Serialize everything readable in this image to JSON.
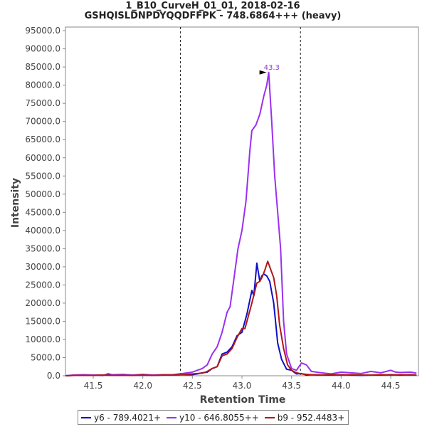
{
  "chart_data": {
    "type": "line",
    "title": "1_B10_CurveH_01_01, 2018-02-16",
    "subtitle": "GSHQISLDNPDYQQDFFPK - 748.6864+++ (heavy)",
    "xlabel": "Retention Time",
    "ylabel": "Intensity",
    "xlim": [
      41.22,
      44.78
    ],
    "ylim": [
      0,
      96000
    ],
    "x_ticks": [
      "41.5",
      "42.0",
      "42.5",
      "43.0",
      "43.5",
      "44.0",
      "44.5"
    ],
    "x_tick_values": [
      41.5,
      42.0,
      42.5,
      43.0,
      43.5,
      44.0,
      44.5
    ],
    "y_ticks": [
      "0.0",
      "5000.0",
      "10000.0",
      "15000.0",
      "20000.0",
      "25000.0",
      "30000.0",
      "35000.0",
      "40000.0",
      "45000.0",
      "50000.0",
      "55000.0",
      "60000.0",
      "65000.0",
      "70000.0",
      "75000.0",
      "80000.0",
      "85000.0",
      "90000.0",
      "95000.0"
    ],
    "y_tick_values": [
      0,
      5000,
      10000,
      15000,
      20000,
      25000,
      30000,
      35000,
      40000,
      45000,
      50000,
      55000,
      60000,
      65000,
      70000,
      75000,
      80000,
      85000,
      90000,
      95000
    ],
    "vlines": [
      42.38,
      43.59
    ],
    "peak_annotation": {
      "label": "43.3",
      "x": 43.27,
      "y": 83500,
      "color": "#9b30d0"
    },
    "grid": false,
    "legend_position": "bottom",
    "series": [
      {
        "name": "y6 - 789.4021+",
        "color": "#1010c8",
        "x": [
          41.22,
          41.3,
          41.4,
          41.5,
          41.6,
          41.65,
          41.7,
          41.8,
          41.9,
          42.0,
          42.1,
          42.2,
          42.3,
          42.4,
          42.5,
          42.55,
          42.6,
          42.65,
          42.7,
          42.75,
          42.8,
          42.85,
          42.9,
          42.95,
          43.0,
          43.05,
          43.1,
          43.12,
          43.15,
          43.18,
          43.2,
          43.22,
          43.25,
          43.28,
          43.32,
          43.36,
          43.4,
          43.45,
          43.5,
          43.55,
          43.6,
          43.65,
          43.7,
          43.8,
          43.9,
          44.0,
          44.1,
          44.2,
          44.3,
          44.4,
          44.5,
          44.6,
          44.7,
          44.76
        ],
        "y": [
          0,
          100,
          100,
          200,
          100,
          500,
          200,
          300,
          100,
          200,
          100,
          200,
          200,
          300,
          300,
          500,
          800,
          1000,
          2000,
          2500,
          6000,
          6500,
          8000,
          11000,
          12000,
          17000,
          23500,
          22000,
          31000,
          26000,
          27500,
          28000,
          27500,
          26000,
          20000,
          9000,
          4500,
          1800,
          1500,
          500,
          600,
          200,
          300,
          200,
          200,
          300,
          200,
          100,
          200,
          200,
          300,
          200,
          300,
          200
        ]
      },
      {
        "name": "y10 - 646.8055++",
        "color": "#9b30f0",
        "x": [
          41.22,
          41.3,
          41.4,
          41.5,
          41.6,
          41.7,
          41.8,
          41.9,
          42.0,
          42.1,
          42.2,
          42.3,
          42.4,
          42.45,
          42.5,
          42.55,
          42.6,
          42.65,
          42.7,
          42.75,
          42.8,
          42.85,
          42.88,
          42.92,
          42.96,
          43.0,
          43.04,
          43.06,
          43.08,
          43.1,
          43.14,
          43.18,
          43.22,
          43.25,
          43.27,
          43.3,
          43.33,
          43.36,
          43.39,
          43.42,
          43.45,
          43.5,
          43.55,
          43.6,
          43.65,
          43.7,
          43.8,
          43.9,
          44.0,
          44.1,
          44.2,
          44.3,
          44.4,
          44.5,
          44.55,
          44.6,
          44.7,
          44.76
        ],
        "y": [
          0,
          200,
          300,
          200,
          200,
          300,
          400,
          200,
          400,
          200,
          300,
          300,
          600,
          800,
          1000,
          1500,
          2000,
          3000,
          6000,
          8000,
          12000,
          17500,
          19000,
          27000,
          35000,
          40000,
          48000,
          55000,
          62000,
          67500,
          69000,
          72000,
          77000,
          80000,
          83500,
          70000,
          55000,
          45000,
          35000,
          15000,
          6000,
          2000,
          1500,
          3500,
          3000,
          1200,
          800,
          500,
          1000,
          800,
          600,
          1200,
          800,
          1500,
          1000,
          900,
          1000,
          700
        ]
      },
      {
        "name": "b9 - 952.4483+",
        "color": "#b01818",
        "x": [
          41.22,
          41.3,
          41.4,
          41.5,
          41.6,
          41.7,
          41.8,
          41.9,
          42.0,
          42.1,
          42.2,
          42.3,
          42.4,
          42.5,
          42.55,
          42.6,
          42.65,
          42.7,
          42.75,
          42.8,
          42.85,
          42.9,
          42.95,
          43.0,
          43.03,
          43.06,
          43.1,
          43.15,
          43.18,
          43.2,
          43.23,
          43.26,
          43.28,
          43.32,
          43.35,
          43.38,
          43.42,
          43.46,
          43.5,
          43.55,
          43.6,
          43.65,
          43.7,
          43.8,
          43.9,
          44.0,
          44.1,
          44.2,
          44.3,
          44.4,
          44.5,
          44.6,
          44.7,
          44.76
        ],
        "y": [
          0,
          100,
          100,
          100,
          200,
          100,
          100,
          100,
          200,
          100,
          200,
          200,
          300,
          500,
          600,
          700,
          1200,
          2000,
          2500,
          5500,
          6000,
          7500,
          10500,
          13000,
          13000,
          16000,
          20000,
          25500,
          26000,
          27000,
          29000,
          31500,
          30000,
          27000,
          22000,
          14000,
          7500,
          3000,
          1500,
          800,
          500,
          400,
          300,
          200,
          300,
          200,
          300,
          200,
          200,
          300,
          200,
          300,
          200,
          200
        ]
      }
    ]
  }
}
